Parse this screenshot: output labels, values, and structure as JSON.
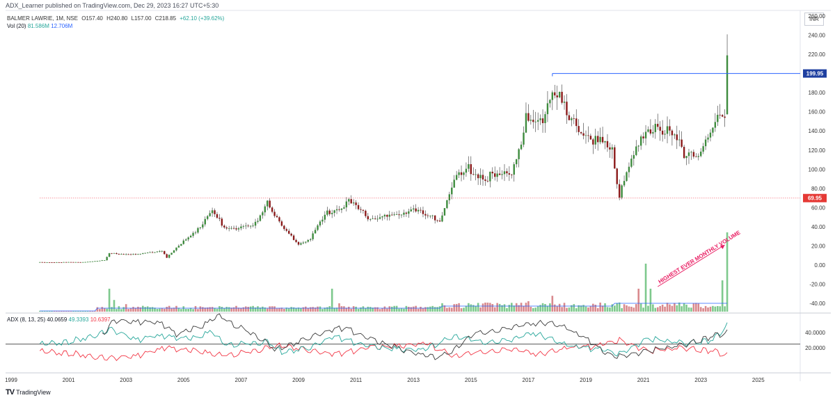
{
  "publisher": "ADX_Learner published on TradingView.com, Dec 29, 2023 16:27 UTC+5:30",
  "symbol": "BALMER LAWRIE, 1M, NSE",
  "ohlc": {
    "open": "O157.40",
    "high": "H240.80",
    "low": "L157.00",
    "close": "C218.85",
    "change": "+62.10 (+39.62%)"
  },
  "volume_legend": {
    "label": "Vol (20)",
    "volume": "81.586M",
    "ma": "12.706M"
  },
  "adx_legend": {
    "label": "ADX (8, 13, 25)",
    "adx": "40.0659",
    "di_plus": "49.3393",
    "di_minus": "10.6397"
  },
  "currency": "INR",
  "logo_text": "TradingView",
  "colors": {
    "up": "#26a69a",
    "down": "#ef5350",
    "volume_up": "#7ec98d",
    "volume_down": "#d9898d",
    "volume_ma": "#2962ff",
    "adx": "#3a3a3a",
    "di_plus": "#26a69a",
    "di_minus": "#f23645",
    "level_line": "#2962ff",
    "level_dotted": "#f23645",
    "annotation": "#e91e63"
  },
  "chart_data": {
    "type": "candlestick",
    "price_axis": {
      "range": [
        -50,
        265
      ],
      "ticks": [
        "260.00",
        "240.00",
        "220.00",
        "200.00",
        "180.00",
        "160.00",
        "140.00",
        "120.00",
        "100.00",
        "80.00",
        "60.00",
        "40.00",
        "20.00",
        "0.00",
        "-20.00",
        "-40.00"
      ]
    },
    "adx_axis": {
      "range": [
        -5,
        65
      ],
      "ticks": [
        "40.0000",
        "20.0000"
      ],
      "threshold": 25
    },
    "x_ticks": [
      "1999",
      "2001",
      "2003",
      "2005",
      "2007",
      "2009",
      "2011",
      "2013",
      "2015",
      "2017",
      "2019",
      "2021",
      "2023",
      "2025"
    ],
    "levels": [
      {
        "value": 199.95,
        "label": "199.95",
        "style": "solid",
        "from": "2017-11"
      },
      {
        "value": 69.95,
        "label": "69.95",
        "style": "dotted",
        "from": "2000-01"
      }
    ],
    "annotation": "HIGHEST EVER MONTHLY VOLUME",
    "price_keypoints": [
      [
        "2000-01",
        3
      ],
      [
        "2001-06",
        3
      ],
      [
        "2002-04",
        5
      ],
      [
        "2002-06",
        12
      ],
      [
        "2003-06",
        11
      ],
      [
        "2004-04",
        15
      ],
      [
        "2004-06",
        8
      ],
      [
        "2005-06",
        36
      ],
      [
        "2006-01",
        55
      ],
      [
        "2006-06",
        40
      ],
      [
        "2007-06",
        39
      ],
      [
        "2007-12",
        68
      ],
      [
        "2008-06",
        40
      ],
      [
        "2009-01",
        22
      ],
      [
        "2009-06",
        28
      ],
      [
        "2010-01",
        55
      ],
      [
        "2010-10",
        66
      ],
      [
        "2011-06",
        50
      ],
      [
        "2012-06",
        50
      ],
      [
        "2013-01",
        62
      ],
      [
        "2013-06",
        50
      ],
      [
        "2013-12",
        48
      ],
      [
        "2014-06",
        88
      ],
      [
        "2014-12",
        100
      ],
      [
        "2015-06",
        94
      ],
      [
        "2016-01",
        90
      ],
      [
        "2016-06",
        100
      ],
      [
        "2016-12",
        150
      ],
      [
        "2017-06",
        148
      ],
      [
        "2017-11",
        190
      ],
      [
        "2018-06",
        150
      ],
      [
        "2018-12",
        140
      ],
      [
        "2019-06",
        128
      ],
      [
        "2019-12",
        118
      ],
      [
        "2020-03",
        75
      ],
      [
        "2020-06",
        100
      ],
      [
        "2020-12",
        128
      ],
      [
        "2021-06",
        148
      ],
      [
        "2021-12",
        135
      ],
      [
        "2022-06",
        118
      ],
      [
        "2023-01",
        120
      ],
      [
        "2023-06",
        140
      ],
      [
        "2023-09",
        160
      ],
      [
        "2023-11",
        157
      ],
      [
        "2023-12",
        218.85
      ]
    ],
    "volume_spikes_pct_of_panel": [
      [
        "2002-06",
        0.55
      ],
      [
        "2002-08",
        0.28
      ],
      [
        "2003-01",
        0.18
      ],
      [
        "2007-10",
        0.12
      ],
      [
        "2010-03",
        0.55
      ],
      [
        "2010-06",
        0.2
      ],
      [
        "2014-06",
        0.18
      ],
      [
        "2017-01",
        0.25
      ],
      [
        "2017-11",
        0.38
      ],
      [
        "2020-11",
        0.55
      ],
      [
        "2021-02",
        1.15
      ],
      [
        "2021-04",
        0.55
      ],
      [
        "2023-10",
        0.75
      ],
      [
        "2023-12",
        1.9
      ]
    ],
    "adx_keypoints": {
      "adx": [
        [
          "2002-03",
          36
        ],
        [
          "2002-08",
          55
        ],
        [
          "2004-03",
          52
        ],
        [
          "2004-10",
          38
        ],
        [
          "2005-09",
          48
        ],
        [
          "2006-03",
          62
        ],
        [
          "2006-09",
          52
        ],
        [
          "2007-09",
          33
        ],
        [
          "2008-03",
          18
        ],
        [
          "2009-03",
          30
        ],
        [
          "2010-03",
          44
        ],
        [
          "2010-09",
          45
        ],
        [
          "2011-06",
          32
        ],
        [
          "2012-09",
          17
        ],
        [
          "2013-09",
          8
        ],
        [
          "2014-03",
          12
        ],
        [
          "2015-03",
          40
        ],
        [
          "2016-03",
          44
        ],
        [
          "2017-03",
          52
        ],
        [
          "2017-09",
          52
        ],
        [
          "2018-03",
          48
        ],
        [
          "2019-03",
          28
        ],
        [
          "2019-09",
          12
        ],
        [
          "2020-03",
          9
        ],
        [
          "2021-01",
          15
        ],
        [
          "2022-06",
          24
        ],
        [
          "2023-06",
          35
        ],
        [
          "2023-12",
          40.07
        ]
      ],
      "di_plus": [
        [
          "2000-01",
          25
        ],
        [
          "2001-01",
          28
        ],
        [
          "2002-04",
          40
        ],
        [
          "2002-06",
          44
        ],
        [
          "2003-06",
          30
        ],
        [
          "2004-01",
          35
        ],
        [
          "2005-06",
          32
        ],
        [
          "2006-01",
          42
        ],
        [
          "2006-06",
          24
        ],
        [
          "2007-06",
          26
        ],
        [
          "2007-12",
          28
        ],
        [
          "2008-06",
          15
        ],
        [
          "2009-06",
          20
        ],
        [
          "2010-03",
          35
        ],
        [
          "2011-06",
          22
        ],
        [
          "2012-06",
          18
        ],
        [
          "2013-06",
          18
        ],
        [
          "2014-06",
          36
        ],
        [
          "2015-06",
          28
        ],
        [
          "2016-06",
          30
        ],
        [
          "2017-03",
          40
        ],
        [
          "2018-06",
          22
        ],
        [
          "2019-06",
          18
        ],
        [
          "2020-03",
          12
        ],
        [
          "2021-03",
          32
        ],
        [
          "2022-06",
          26
        ],
        [
          "2023-06",
          30
        ],
        [
          "2023-12",
          49.34
        ]
      ],
      "di_minus": [
        [
          "2000-01",
          16
        ],
        [
          "2001-06",
          12
        ],
        [
          "2002-06",
          6
        ],
        [
          "2003-06",
          10
        ],
        [
          "2004-06",
          20
        ],
        [
          "2005-06",
          16
        ],
        [
          "2006-06",
          10
        ],
        [
          "2007-06",
          16
        ],
        [
          "2008-06",
          24
        ],
        [
          "2009-06",
          16
        ],
        [
          "2010-06",
          12
        ],
        [
          "2011-06",
          20
        ],
        [
          "2012-06",
          22
        ],
        [
          "2013-06",
          26
        ],
        [
          "2014-06",
          10
        ],
        [
          "2015-06",
          16
        ],
        [
          "2016-06",
          18
        ],
        [
          "2017-06",
          12
        ],
        [
          "2018-06",
          20
        ],
        [
          "2019-06",
          22
        ],
        [
          "2020-03",
          30
        ],
        [
          "2021-03",
          16
        ],
        [
          "2022-06",
          20
        ],
        [
          "2023-06",
          16
        ],
        [
          "2023-12",
          10.64
        ]
      ]
    }
  }
}
